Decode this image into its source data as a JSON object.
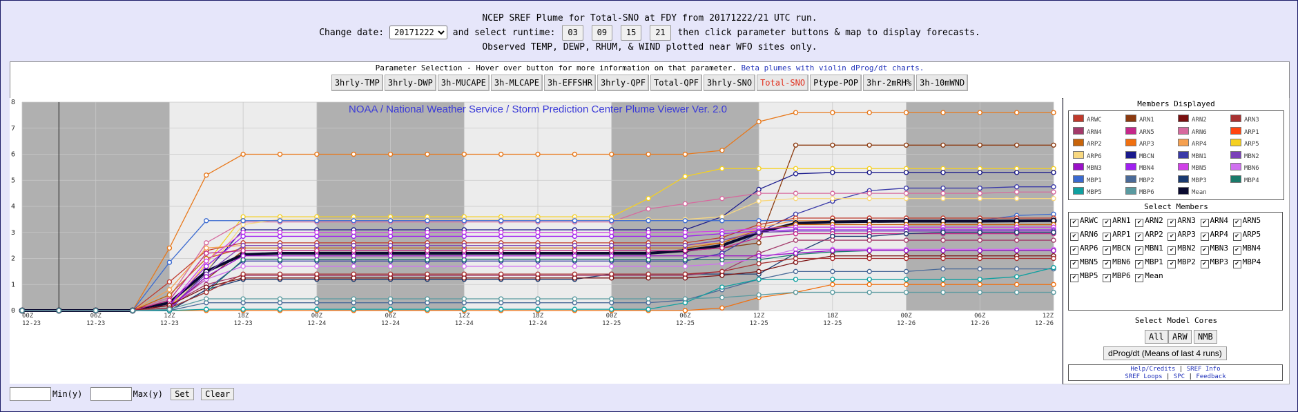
{
  "header": {
    "line1": "NCEP SREF Plume for Total-SNO at FDY from 20171222/21 UTC run.",
    "change_date_label": "Change date:",
    "date_value": "20171222",
    "select_runtime_label": "and select runtime:",
    "runtimes": [
      "03",
      "09",
      "15",
      "21"
    ],
    "line2_tail": "then click parameter buttons & map to display forecasts.",
    "line3": "Observed TEMP, DEWP, RHUM, & WIND plotted near WFO sites only."
  },
  "param_panel": {
    "note": "Parameter Selection - Hover over button for more information on that parameter.",
    "beta_link": "Beta plumes with violin dProg/dt charts.",
    "buttons": [
      "3hrly-TMP",
      "3hrly-DWP",
      "3h-MUCAPE",
      "3h-MLCAPE",
      "3h-EFFSHR",
      "3hrly-QPF",
      "Total-QPF",
      "3hrly-SNO",
      "Total-SNO",
      "Ptype-POP",
      "3hr-2mRH%",
      "3h-10mWND"
    ],
    "active_button": "Total-SNO"
  },
  "sidebar": {
    "members_title": "Members Displayed",
    "legend": [
      {
        "name": "ARWC",
        "color": "#c0392b"
      },
      {
        "name": "ARN1",
        "color": "#8b3a0f"
      },
      {
        "name": "ARN2",
        "color": "#7a1010"
      },
      {
        "name": "ARN3",
        "color": "#a83232"
      },
      {
        "name": "ARN4",
        "color": "#a33a6a"
      },
      {
        "name": "ARN5",
        "color": "#c4288a"
      },
      {
        "name": "ARN6",
        "color": "#d66a9e"
      },
      {
        "name": "ARP1",
        "color": "#ff4510"
      },
      {
        "name": "ARP2",
        "color": "#c8640a"
      },
      {
        "name": "ARP3",
        "color": "#f07010"
      },
      {
        "name": "ARP4",
        "color": "#f5a050"
      },
      {
        "name": "ARP5",
        "color": "#f5d020"
      },
      {
        "name": "ARP6",
        "color": "#f8d880"
      },
      {
        "name": "MBCN",
        "color": "#1a1a8c"
      },
      {
        "name": "MBN1",
        "color": "#3a3aa8"
      },
      {
        "name": "MBN2",
        "color": "#7a40b8"
      },
      {
        "name": "MBN3",
        "color": "#9a10c8"
      },
      {
        "name": "MBN4",
        "color": "#a020f0"
      },
      {
        "name": "MBN5",
        "color": "#d040e8"
      },
      {
        "name": "MBN6",
        "color": "#d070f0"
      },
      {
        "name": "MBP1",
        "color": "#3a6ad0"
      },
      {
        "name": "MBP2",
        "color": "#4a6a98"
      },
      {
        "name": "MBP3",
        "color": "#1a3a70"
      },
      {
        "name": "MBP4",
        "color": "#1a7a6a"
      },
      {
        "name": "MBP5",
        "color": "#10a0a0"
      },
      {
        "name": "MBP6",
        "color": "#5a9aa0"
      },
      {
        "name": "Mean",
        "color": "#0a0a30"
      }
    ],
    "select_members_title": "Select Members",
    "members": [
      "ARWC",
      "ARN1",
      "ARN2",
      "ARN3",
      "ARN4",
      "ARN5",
      "ARN6",
      "ARP1",
      "ARP2",
      "ARP3",
      "ARP4",
      "ARP5",
      "ARP6",
      "MBCN",
      "MBN1",
      "MBN2",
      "MBN3",
      "MBN4",
      "MBN5",
      "MBN6",
      "MBP1",
      "MBP2",
      "MBP3",
      "MBP4",
      "MBP5",
      "MBP6",
      "Mean"
    ],
    "select_cores_title": "Select Model Cores",
    "core_buttons": [
      "All",
      "ARW",
      "NMB"
    ],
    "dprog_button": "dProg/dt (Means of last 4 runs)",
    "links_row1": [
      "Help/Credits",
      "SREF Info"
    ],
    "links_row2": [
      "SREF Loops",
      "SPC",
      "Feedback"
    ]
  },
  "bottom": {
    "min_label": "Min(y)",
    "max_label": "Max(y)",
    "set_button": "Set",
    "clear_button": "Clear"
  },
  "chart_data": {
    "type": "line",
    "title": "NOAA / National Weather Service / Storm Prediction Center Plume Viewer Ver. 2.0",
    "xlabel": "",
    "ylabel": "",
    "ylim": [
      0,
      8
    ],
    "y_ticks": [
      0,
      1,
      2,
      3,
      4,
      5,
      6,
      7,
      8
    ],
    "x_tick_labels": [
      [
        "00Z",
        "12-23"
      ],
      [
        "06Z",
        "12-23"
      ],
      [
        "12Z",
        "12-23"
      ],
      [
        "18Z",
        "12-23"
      ],
      [
        "00Z",
        "12-24"
      ],
      [
        "06Z",
        "12-24"
      ],
      [
        "12Z",
        "12-24"
      ],
      [
        "18Z",
        "12-24"
      ],
      [
        "00Z",
        "12-25"
      ],
      [
        "06Z",
        "12-25"
      ],
      [
        "12Z",
        "12-25"
      ],
      [
        "18Z",
        "12-25"
      ],
      [
        "00Z",
        "12-26"
      ],
      [
        "06Z",
        "12-26"
      ],
      [
        "12Z",
        "12-26"
      ]
    ],
    "x_hours": [
      0,
      3,
      6,
      9,
      12,
      15,
      18,
      21,
      24,
      27,
      30,
      33,
      36,
      39,
      42,
      45,
      48,
      51,
      54,
      57,
      60,
      63,
      66,
      69,
      72,
      75,
      78,
      81,
      84
    ],
    "shading": "night bands dark gray, day bands light gray",
    "series": [
      {
        "name": "ARP3",
        "color": "#f07010",
        "values": [
          0,
          0,
          0,
          0,
          0,
          0,
          0,
          0,
          0,
          0,
          0,
          0,
          0,
          0,
          0,
          0,
          0,
          0,
          0,
          0.1,
          0.5,
          0.7,
          1.0,
          1.0,
          1.0,
          1.0,
          1.0,
          1.0,
          1.0
        ]
      },
      {
        "name": "ARP1",
        "color": "#e8781a",
        "values": [
          0,
          0,
          0,
          0,
          2.4,
          5.2,
          6.0,
          6.0,
          6.0,
          6.0,
          6.0,
          6.0,
          6.0,
          6.0,
          6.0,
          6.0,
          6.0,
          6.0,
          6.0,
          6.15,
          7.25,
          7.6,
          7.6,
          7.6,
          7.6,
          7.6,
          7.6,
          7.6,
          7.6
        ]
      },
      {
        "name": "ARN1",
        "color": "#8b3a0f",
        "values": [
          0,
          0,
          0,
          0,
          0.2,
          1.2,
          2.3,
          2.3,
          2.3,
          2.3,
          2.3,
          2.3,
          2.3,
          2.3,
          2.3,
          2.3,
          2.3,
          2.3,
          2.3,
          2.4,
          2.6,
          6.35,
          6.35,
          6.35,
          6.35,
          6.35,
          6.35,
          6.35,
          6.35
        ]
      },
      {
        "name": "ARP5",
        "color": "#f5d020",
        "values": [
          0,
          0,
          0,
          0,
          0.1,
          1.8,
          3.6,
          3.6,
          3.6,
          3.6,
          3.6,
          3.6,
          3.6,
          3.6,
          3.6,
          3.6,
          3.6,
          4.3,
          5.15,
          5.45,
          5.45,
          5.45,
          5.45,
          5.45,
          5.45,
          5.45,
          5.45,
          5.45,
          5.45
        ]
      },
      {
        "name": "MBCN",
        "color": "#1a1a8c",
        "values": [
          0,
          0,
          0,
          0,
          0,
          1.5,
          3.1,
          3.1,
          3.1,
          3.1,
          3.1,
          3.1,
          3.1,
          3.1,
          3.1,
          3.1,
          3.1,
          3.1,
          3.1,
          3.6,
          4.65,
          5.25,
          5.3,
          5.3,
          5.3,
          5.3,
          5.3,
          5.3,
          5.3
        ]
      },
      {
        "name": "MBN1",
        "color": "#3a3aa8",
        "values": [
          0,
          0,
          0,
          0,
          0,
          0.8,
          1.9,
          1.9,
          1.9,
          1.9,
          1.9,
          1.9,
          1.9,
          1.9,
          1.9,
          1.9,
          1.9,
          1.9,
          1.9,
          2.2,
          3.0,
          3.7,
          4.2,
          4.6,
          4.7,
          4.7,
          4.7,
          4.75,
          4.75
        ]
      },
      {
        "name": "ARN6",
        "color": "#d66a9e",
        "values": [
          0,
          0,
          0,
          0,
          0.5,
          2.6,
          3.4,
          3.4,
          3.4,
          3.4,
          3.4,
          3.4,
          3.4,
          3.4,
          3.4,
          3.4,
          3.4,
          3.9,
          4.1,
          4.3,
          4.5,
          4.5,
          4.5,
          4.5,
          4.5,
          4.5,
          4.5,
          4.55,
          4.55
        ]
      },
      {
        "name": "ARP6",
        "color": "#f8d880",
        "values": [
          0,
          0,
          0,
          0,
          0.1,
          1.5,
          3.3,
          3.5,
          3.5,
          3.5,
          3.5,
          3.5,
          3.5,
          3.5,
          3.5,
          3.5,
          3.5,
          3.5,
          3.5,
          3.6,
          4.2,
          4.3,
          4.3,
          4.3,
          4.3,
          4.3,
          4.3,
          4.3,
          4.3
        ]
      },
      {
        "name": "MBP1",
        "color": "#3a6ad0",
        "values": [
          0,
          0,
          0,
          0,
          1.85,
          3.45,
          3.45,
          3.45,
          3.45,
          3.45,
          3.45,
          3.45,
          3.45,
          3.45,
          3.45,
          3.45,
          3.45,
          3.45,
          3.45,
          3.45,
          3.45,
          3.45,
          3.45,
          3.45,
          3.45,
          3.45,
          3.45,
          3.65,
          3.7
        ]
      },
      {
        "name": "ARWC",
        "color": "#c0392b",
        "values": [
          0,
          0,
          0,
          0,
          1.1,
          2.3,
          2.6,
          2.6,
          2.6,
          2.6,
          2.6,
          2.6,
          2.6,
          2.6,
          2.6,
          2.6,
          2.6,
          2.6,
          2.6,
          2.8,
          3.3,
          3.55,
          3.55,
          3.55,
          3.55,
          3.55,
          3.55,
          3.55,
          3.55
        ]
      },
      {
        "name": "ARP4",
        "color": "#f5a050",
        "values": [
          0,
          0,
          0,
          0,
          0.8,
          2.4,
          2.5,
          2.5,
          2.5,
          2.5,
          2.5,
          2.5,
          2.5,
          2.5,
          2.5,
          2.5,
          2.5,
          2.5,
          2.5,
          2.6,
          3.2,
          3.45,
          3.45,
          3.45,
          3.45,
          3.45,
          3.45,
          3.45,
          3.45
        ]
      },
      {
        "name": "Mean",
        "color": "#0a0a30",
        "values": [
          0,
          0,
          0,
          0,
          0.3,
          1.5,
          2.15,
          2.2,
          2.2,
          2.2,
          2.2,
          2.2,
          2.2,
          2.2,
          2.2,
          2.2,
          2.2,
          2.2,
          2.3,
          2.5,
          3.0,
          3.35,
          3.4,
          3.42,
          3.43,
          3.43,
          3.43,
          3.44,
          3.45
        ]
      },
      {
        "name": "ARP2",
        "color": "#c8640a",
        "values": [
          0,
          0,
          0,
          0,
          0.6,
          2.0,
          2.4,
          2.4,
          2.4,
          2.4,
          2.4,
          2.4,
          2.4,
          2.4,
          2.4,
          2.4,
          2.4,
          2.4,
          2.4,
          2.6,
          3.1,
          3.3,
          3.3,
          3.3,
          3.3,
          3.3,
          3.3,
          3.3,
          3.3
        ]
      },
      {
        "name": "MBN5",
        "color": "#d040e8",
        "values": [
          0,
          0,
          0,
          0,
          0.2,
          1.9,
          3.0,
          3.0,
          3.0,
          3.0,
          3.0,
          3.0,
          3.0,
          3.0,
          3.0,
          3.0,
          3.0,
          3.0,
          3.0,
          3.05,
          3.15,
          3.2,
          3.2,
          3.2,
          3.2,
          3.2,
          3.2,
          3.2,
          3.2
        ]
      },
      {
        "name": "MBN4",
        "color": "#a020f0",
        "values": [
          0,
          0,
          0,
          0,
          0.2,
          1.7,
          2.85,
          2.85,
          2.85,
          2.85,
          2.85,
          2.85,
          2.85,
          2.85,
          2.85,
          2.85,
          2.85,
          2.85,
          2.85,
          2.95,
          3.05,
          3.1,
          3.1,
          3.1,
          3.1,
          3.1,
          3.1,
          3.1,
          3.1
        ]
      },
      {
        "name": "MBN2",
        "color": "#7a40b8",
        "values": [
          0,
          0,
          0,
          0,
          0.1,
          1.4,
          2.5,
          2.5,
          2.5,
          2.5,
          2.5,
          2.5,
          2.5,
          2.5,
          2.5,
          2.5,
          2.5,
          2.5,
          2.5,
          2.7,
          3.0,
          3.05,
          3.05,
          3.05,
          3.05,
          3.05,
          3.05,
          3.05,
          3.05
        ]
      },
      {
        "name": "ARN5",
        "color": "#c4288a",
        "values": [
          0,
          0,
          0,
          0,
          0.4,
          2.2,
          2.3,
          2.3,
          2.3,
          2.3,
          2.3,
          2.3,
          2.3,
          2.3,
          2.3,
          2.3,
          2.3,
          2.3,
          2.3,
          2.4,
          2.8,
          2.95,
          2.95,
          2.95,
          2.95,
          2.95,
          2.95,
          2.95,
          2.95
        ]
      },
      {
        "name": "MBP3",
        "color": "#1a3a70",
        "values": [
          0,
          0,
          0,
          0,
          0,
          0.8,
          1.2,
          1.2,
          1.2,
          1.2,
          1.2,
          1.2,
          1.2,
          1.2,
          1.2,
          1.2,
          1.4,
          1.4,
          1.4,
          1.4,
          1.4,
          2.2,
          2.85,
          2.85,
          2.95,
          3.0,
          3.0,
          3.0,
          3.0
        ]
      },
      {
        "name": "ARN4",
        "color": "#a33a6a",
        "values": [
          0,
          0,
          0,
          0,
          0.2,
          1.0,
          1.35,
          1.35,
          1.35,
          1.35,
          1.35,
          1.35,
          1.35,
          1.35,
          1.35,
          1.35,
          1.35,
          1.35,
          1.35,
          1.5,
          2.2,
          2.7,
          2.7,
          2.7,
          2.7,
          2.7,
          2.7,
          2.7,
          2.7
        ]
      },
      {
        "name": "MBN6",
        "color": "#d070f0",
        "values": [
          0,
          0,
          0,
          0,
          0.1,
          1.2,
          1.7,
          1.7,
          1.7,
          1.7,
          1.7,
          1.7,
          1.7,
          1.7,
          1.7,
          1.7,
          1.7,
          1.7,
          1.7,
          1.8,
          2.0,
          2.35,
          2.35,
          2.35,
          2.35,
          2.35,
          2.35,
          2.35,
          2.35
        ]
      },
      {
        "name": "MBP4",
        "color": "#1a7a6a",
        "values": [
          0,
          0,
          0,
          0,
          0.1,
          0.7,
          1.95,
          1.95,
          1.95,
          1.95,
          1.95,
          1.95,
          1.95,
          1.95,
          1.95,
          1.95,
          1.95,
          1.95,
          1.95,
          1.95,
          1.95,
          2.15,
          2.25,
          2.3,
          2.3,
          2.3,
          2.3,
          2.3,
          2.3
        ]
      },
      {
        "name": "MBN3",
        "color": "#9a10c8",
        "values": [
          0,
          0,
          0,
          0,
          0.1,
          1.3,
          2.1,
          2.1,
          2.1,
          2.1,
          2.1,
          2.1,
          2.1,
          2.1,
          2.1,
          2.1,
          2.1,
          2.1,
          2.1,
          2.1,
          2.1,
          2.2,
          2.3,
          2.3,
          2.3,
          2.3,
          2.3,
          2.3,
          2.3
        ]
      },
      {
        "name": "ARN2",
        "color": "#7a1010",
        "values": [
          0,
          0,
          0,
          0,
          0.2,
          0.9,
          1.25,
          1.25,
          1.25,
          1.25,
          1.25,
          1.25,
          1.25,
          1.25,
          1.25,
          1.25,
          1.25,
          1.25,
          1.25,
          1.35,
          1.5,
          1.85,
          2.1,
          2.1,
          2.1,
          2.1,
          2.1,
          2.1,
          2.1
        ]
      },
      {
        "name": "ARN3",
        "color": "#a83232",
        "values": [
          0,
          0,
          0,
          0,
          0.1,
          0.7,
          1.4,
          1.4,
          1.4,
          1.4,
          1.4,
          1.4,
          1.4,
          1.4,
          1.4,
          1.4,
          1.4,
          1.4,
          1.4,
          1.5,
          1.8,
          2.0,
          2.0,
          2.0,
          2.0,
          2.0,
          2.0,
          2.0,
          2.0
        ]
      },
      {
        "name": "MBP2",
        "color": "#4a6a98",
        "values": [
          0,
          0,
          0,
          0,
          0,
          0.3,
          0.3,
          0.3,
          0.3,
          0.3,
          0.3,
          0.3,
          0.3,
          0.3,
          0.3,
          0.3,
          0.3,
          0.3,
          0.4,
          0.8,
          1.2,
          1.5,
          1.5,
          1.5,
          1.5,
          1.6,
          1.6,
          1.6,
          1.6
        ]
      },
      {
        "name": "MBP5",
        "color": "#10a0a0",
        "values": [
          0,
          0,
          0,
          0,
          0,
          0.05,
          0.05,
          0.05,
          0.05,
          0.05,
          0.05,
          0.05,
          0.05,
          0.05,
          0.05,
          0.05,
          0.05,
          0.05,
          0.3,
          0.9,
          1.2,
          1.2,
          1.2,
          1.2,
          1.2,
          1.2,
          1.2,
          1.3,
          1.65
        ]
      },
      {
        "name": "MBP6",
        "color": "#5a9aa0",
        "values": [
          0,
          0,
          0,
          0,
          0.05,
          0.45,
          0.45,
          0.45,
          0.45,
          0.45,
          0.45,
          0.45,
          0.45,
          0.45,
          0.45,
          0.45,
          0.45,
          0.45,
          0.45,
          0.5,
          0.6,
          0.7,
          0.7,
          0.7,
          0.7,
          0.7,
          0.7,
          0.7,
          0.7
        ]
      }
    ]
  }
}
